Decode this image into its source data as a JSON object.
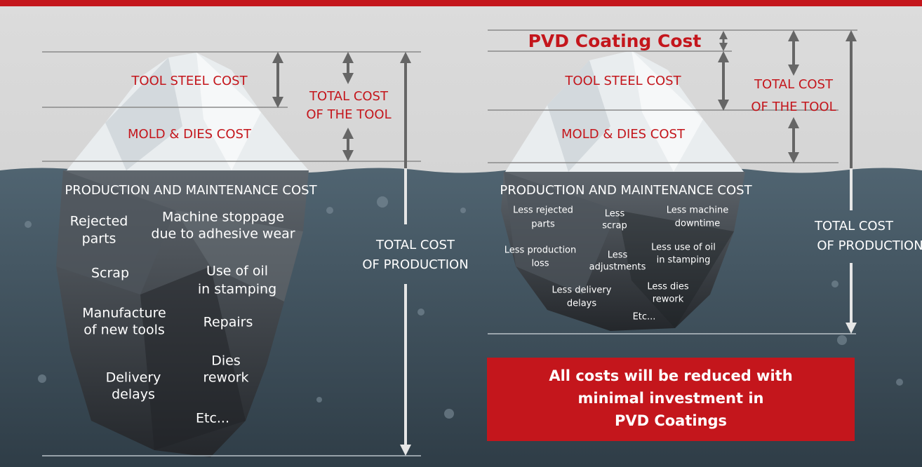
{
  "left": {
    "tip_labels": [
      "TOOL STEEL COST",
      "MOLD & DIES COST"
    ],
    "tool_total": [
      "TOTAL COST",
      "OF THE TOOL"
    ],
    "underwater_title": "PRODUCTION AND MAINTENANCE COST",
    "items": [
      [
        "Rejected",
        "parts"
      ],
      [
        "Machine stoppage",
        "due to adhesive wear"
      ],
      [
        "Scrap"
      ],
      [
        "Use of oil",
        "in stamping"
      ],
      [
        "Manufacture",
        "of new tools"
      ],
      [
        "Repairs"
      ],
      [
        "Delivery",
        "delays"
      ],
      [
        "Dies",
        "rework"
      ],
      [
        "Etc..."
      ]
    ],
    "production_total": [
      "TOTAL COST",
      "OF PRODUCTION"
    ]
  },
  "right": {
    "pvd_label": "PVD Coating Cost",
    "tip_labels": [
      "TOOL STEEL COST",
      "MOLD & DIES COST"
    ],
    "tool_total": [
      "TOTAL COST",
      "OF THE TOOL"
    ],
    "underwater_title": "PRODUCTION AND MAINTENANCE COST",
    "items": [
      [
        "Less rejected",
        "parts"
      ],
      [
        "Less",
        "scrap"
      ],
      [
        "Less machine",
        "downtime"
      ],
      [
        "Less production",
        "loss"
      ],
      [
        "Less",
        "adjustments"
      ],
      [
        "Less use of oil",
        "in stamping"
      ],
      [
        "Less delivery",
        "delays"
      ],
      [
        "Less dies",
        "rework"
      ],
      [
        "Etc..."
      ]
    ],
    "production_total": [
      "TOTAL COST",
      "OF PRODUCTION"
    ],
    "callout": [
      "All costs will be reduced with",
      "minimal investment in",
      "PVD Coatings"
    ]
  }
}
